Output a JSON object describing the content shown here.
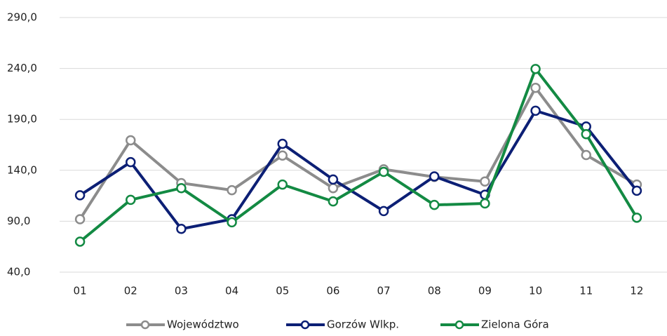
{
  "chart_data": {
    "type": "line",
    "categories": [
      "01",
      "02",
      "03",
      "04",
      "05",
      "06",
      "07",
      "08",
      "09",
      "10",
      "11",
      "12"
    ],
    "series": [
      {
        "name": "Województwo",
        "color": "#8c8c8c",
        "values": [
          92,
          169.5,
          127.5,
          120.5,
          154.5,
          122.5,
          141,
          133.5,
          129,
          221,
          155,
          126
        ]
      },
      {
        "name": "Gorzów Wlkp.",
        "color": "#0c1f75",
        "values": [
          115.5,
          148,
          82.5,
          92,
          166,
          131,
          100,
          134,
          116,
          198.5,
          183,
          120
        ]
      },
      {
        "name": "Zielona Góra",
        "color": "#138a43",
        "values": [
          70,
          111,
          122.5,
          89,
          126,
          109.5,
          138.5,
          106,
          107.5,
          239.5,
          175.5,
          93.5
        ]
      }
    ],
    "ylim": [
      40,
      290
    ],
    "yticks": [
      {
        "value": 40,
        "label": "40,0"
      },
      {
        "value": 90,
        "label": "90,0"
      },
      {
        "value": 140,
        "label": "140,0"
      },
      {
        "value": 190,
        "label": "190,0"
      },
      {
        "value": 240,
        "label": "240,0"
      },
      {
        "value": 290,
        "label": "290,0"
      }
    ],
    "grid": true,
    "legend": "bottom"
  }
}
